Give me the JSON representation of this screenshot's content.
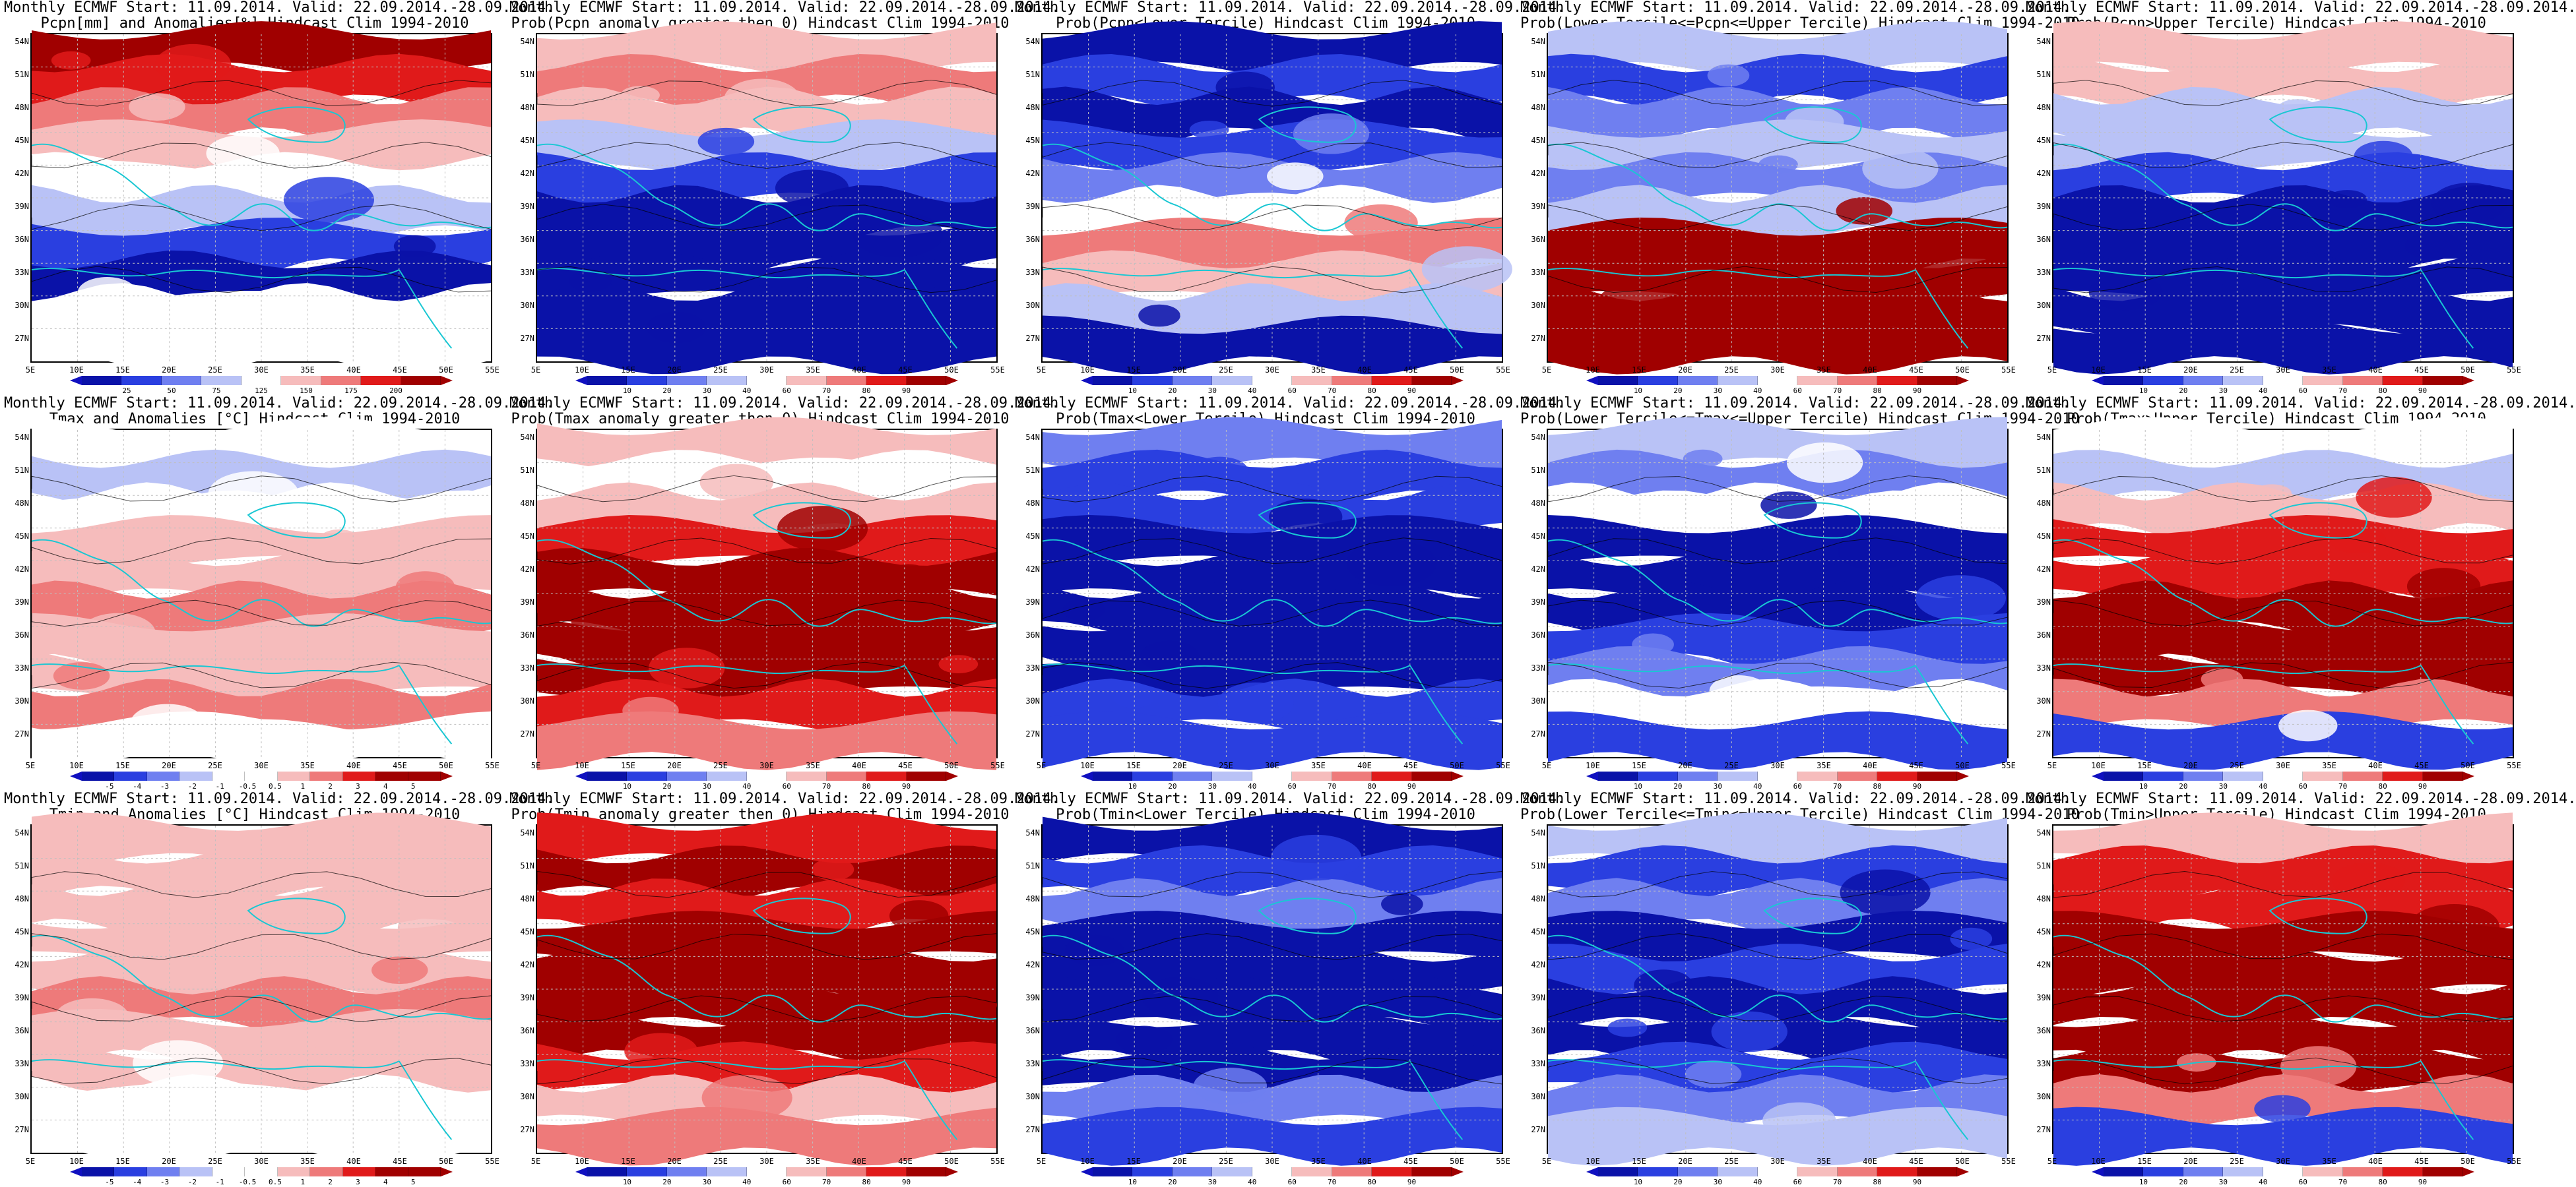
{
  "colors": {
    "deep_blue": "#0a12a8",
    "blue": "#2a3fe0",
    "mid_blue": "#6f7ff0",
    "light_blue": "#b9c2f6",
    "white": "#ffffff",
    "light_red": "#f6bcbc",
    "mid_red": "#ee7a7a",
    "red": "#e01a1a",
    "deep_red": "#a00000",
    "coast": "#19c7d3",
    "contour": "#000000",
    "grid": "#bfbfbf"
  },
  "axes": {
    "lat_labels": [
      "54N",
      "51N",
      "48N",
      "45N",
      "42N",
      "39N",
      "36N",
      "33N",
      "30N",
      "27N"
    ],
    "lon_labels": [
      "5E",
      "10E",
      "15E",
      "20E",
      "25E",
      "30E",
      "35E",
      "40E",
      "45E",
      "50E",
      "55E"
    ]
  },
  "colorbars": {
    "pcpn_anom": [
      "25",
      "50",
      "75",
      "125",
      "150",
      "175",
      "200"
    ],
    "prob": [
      "10",
      "20",
      "30",
      "40",
      "60",
      "70",
      "80",
      "90"
    ],
    "temp_anom": [
      "-5",
      "-4",
      "-3",
      "-2",
      "-1",
      "-0.5",
      "0.5",
      "1",
      "2",
      "3",
      "4",
      "5"
    ]
  },
  "panels": [
    {
      "title1": "Monthly ECMWF Start: 11.09.2014. Valid: 22.09.2014.-28.09.2014.",
      "title2": "Pcpn[mm] and Anomalies[%] Hindcast Clim 1994-2010",
      "scheme": "pcpn_anom",
      "cbar": "pcpn_anom",
      "pattern": [
        "deep_red",
        "red",
        "mid_red",
        "light_red",
        "white",
        "light_blue",
        "blue",
        "deep_blue",
        "white",
        "white"
      ]
    },
    {
      "title1": "Monthly ECMWF Start: 11.09.2014. Valid: 22.09.2014.-28.09.2014.",
      "title2": "Prob(Pcpn anomaly greater then 0) Hindcast Clim 1994-2010",
      "scheme": "prob",
      "cbar": "prob",
      "pattern": [
        "light_red",
        "mid_red",
        "light_red",
        "light_blue",
        "blue",
        "deep_blue",
        "deep_blue",
        "deep_blue",
        "deep_blue",
        "deep_blue"
      ]
    },
    {
      "title1": "Monthly ECMWF Start: 11.09.2014. Valid: 22.09.2014.-28.09.2014.",
      "title2": "Prob(Pcpn<Lower Tercile) Hindcast Clim 1994-2010",
      "scheme": "prob",
      "cbar": "prob",
      "pattern": [
        "deep_blue",
        "blue",
        "deep_blue",
        "blue",
        "mid_blue",
        "white",
        "mid_red",
        "light_red",
        "light_blue",
        "deep_blue"
      ]
    },
    {
      "title1": "Monthly ECMWF Start: 11.09.2014. Valid: 22.09.2014.-28.09.2014.",
      "title2": "Prob(Lower Tercile<=Pcpn<=Upper Tercile) Hindcast Clim 1994-2010",
      "scheme": "prob",
      "cbar": "prob",
      "pattern": [
        "light_blue",
        "blue",
        "mid_blue",
        "light_blue",
        "mid_blue",
        "light_blue",
        "deep_red",
        "deep_red",
        "deep_red",
        "deep_red"
      ]
    },
    {
      "title1": "Monthly ECMWF Start: 11.09.2014. Valid: 22.09.2014.-28.09.2014.",
      "title2": "Prob(Pcpn>Upper Tercile) Hindcast Clim 1994-2010",
      "scheme": "prob",
      "cbar": "prob",
      "pattern": [
        "light_red",
        "light_red",
        "light_blue",
        "light_blue",
        "blue",
        "deep_blue",
        "deep_blue",
        "deep_blue",
        "deep_blue",
        "deep_blue"
      ]
    },
    {
      "title1": "Monthly ECMWF Start: 11.09.2014. Valid: 22.09.2014.-28.09.2014.",
      "title2": "Tmax and Anomalies [°C] Hindcast Clim 1994-2010",
      "scheme": "temp_anom",
      "cbar": "temp_anom",
      "pattern": [
        "white",
        "light_blue",
        "white",
        "light_red",
        "light_red",
        "mid_red",
        "light_red",
        "light_red",
        "mid_red",
        "white"
      ]
    },
    {
      "title1": "Monthly ECMWF Start: 11.09.2014. Valid: 22.09.2014.-28.09.2014.",
      "title2": "Prob(Tmax anomaly greater then 0) Hindcast Clim 1994-2010",
      "scheme": "prob",
      "cbar": "prob",
      "pattern": [
        "light_red",
        "white",
        "light_red",
        "red",
        "deep_red",
        "deep_red",
        "deep_red",
        "deep_red",
        "red",
        "mid_red"
      ]
    },
    {
      "title1": "Monthly ECMWF Start: 11.09.2014. Valid: 22.09.2014.-28.09.2014.",
      "title2": "Prob(Tmax<Lower Tercile) Hindcast Clim 1994-2010",
      "scheme": "prob",
      "cbar": "prob",
      "pattern": [
        "mid_blue",
        "blue",
        "blue",
        "deep_blue",
        "deep_blue",
        "deep_blue",
        "deep_blue",
        "deep_blue",
        "blue",
        "blue"
      ]
    },
    {
      "title1": "Monthly ECMWF Start: 11.09.2014. Valid: 22.09.2014.-28.09.2014.",
      "title2": "Prob(Lower Tercile<=Tmax<=Upper Tercile) Hindcast Clim 1994-2010",
      "scheme": "prob",
      "cbar": "prob",
      "pattern": [
        "light_blue",
        "mid_blue",
        "white",
        "deep_blue",
        "deep_blue",
        "deep_blue",
        "blue",
        "mid_blue",
        "white",
        "blue"
      ]
    },
    {
      "title1": "Monthly ECMWF Start: 11.09.2014. Valid: 22.09.2014.-28.09.2014.",
      "title2": "Prob(Tmax>Upper Tercile) Hindcast Clim 1994-2010",
      "scheme": "prob",
      "cbar": "prob",
      "pattern": [
        "white",
        "light_blue",
        "light_red",
        "red",
        "red",
        "deep_red",
        "deep_red",
        "deep_red",
        "mid_red",
        "blue"
      ]
    },
    {
      "title1": "Monthly ECMWF Start: 11.09.2014. Valid: 22.09.2014.-28.09.2014.",
      "title2": "Tmin and Anomalies [°C] Hindcast Clim 1994-2010",
      "scheme": "temp_anom",
      "cbar": "temp_anom",
      "pattern": [
        "light_red",
        "light_red",
        "light_red",
        "light_red",
        "light_red",
        "mid_red",
        "light_red",
        "light_red",
        "white",
        "white"
      ]
    },
    {
      "title1": "Monthly ECMWF Start: 11.09.2014. Valid: 22.09.2014.-28.09.2014.",
      "title2": "Prob(Tmin anomaly greater then 0) Hindcast Clim 1994-2010",
      "scheme": "prob",
      "cbar": "prob",
      "pattern": [
        "red",
        "deep_red",
        "red",
        "deep_red",
        "deep_red",
        "deep_red",
        "deep_red",
        "red",
        "light_red",
        "mid_red"
      ]
    },
    {
      "title1": "Monthly ECMWF Start: 11.09.2014. Valid: 22.09.2014.-28.09.2014.",
      "title2": "Prob(Tmin<Lower Tercile) Hindcast Clim 1994-2010",
      "scheme": "prob",
      "cbar": "prob",
      "pattern": [
        "deep_blue",
        "blue",
        "mid_blue",
        "deep_blue",
        "deep_blue",
        "deep_blue",
        "deep_blue",
        "deep_blue",
        "mid_blue",
        "blue"
      ]
    },
    {
      "title1": "Monthly ECMWF Start: 11.09.2014. Valid: 22.09.2014.-28.09.2014.",
      "title2": "Prob(Lower Tercile<=Tmin<=Upper Tercile) Hindcast Clim 1994-2010",
      "scheme": "prob",
      "cbar": "prob",
      "pattern": [
        "light_blue",
        "blue",
        "mid_blue",
        "deep_blue",
        "blue",
        "deep_blue",
        "deep_blue",
        "blue",
        "mid_blue",
        "light_blue"
      ]
    },
    {
      "title1": "Monthly ECMWF Start: 11.09.2014. Valid: 22.09.2014.-28.09.2014.",
      "title2": "Prob(Tmin>Upper Tercile) Hindcast Clim 1994-2010",
      "scheme": "prob",
      "cbar": "prob",
      "pattern": [
        "light_red",
        "red",
        "red",
        "deep_red",
        "deep_red",
        "deep_red",
        "deep_red",
        "deep_red",
        "mid_red",
        "blue"
      ]
    }
  ]
}
